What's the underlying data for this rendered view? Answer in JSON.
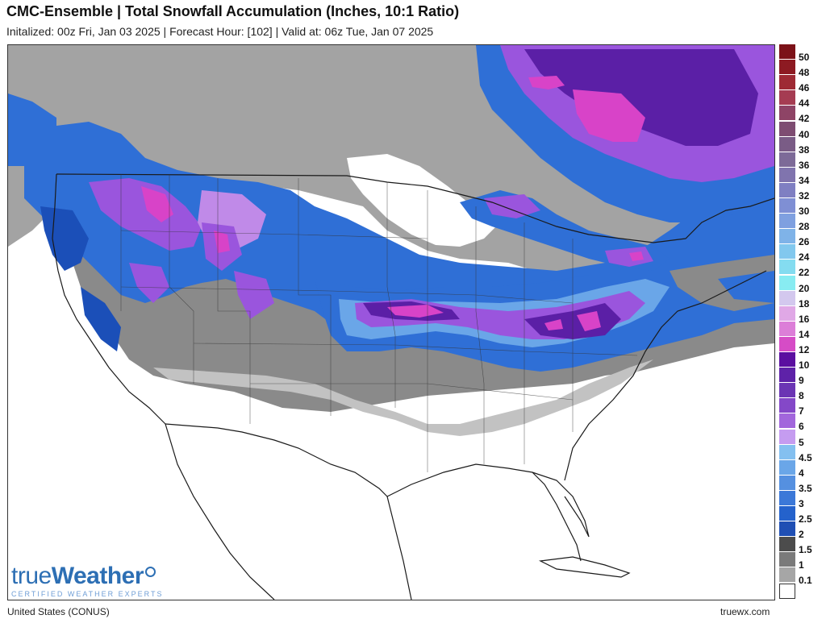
{
  "header": {
    "title": "CMC-Ensemble | Total Snowfall Accumulation (Inches, 10:1 Ratio)",
    "subtitle": "Initalized: 00z Fri, Jan 03 2025  |  Forecast Hour: [102]  |  Valid at: 06z Tue, Jan 07 2025"
  },
  "map": {
    "region": "United States (CONUS)",
    "colors": {
      "land": "#ffffff",
      "border": "#222222",
      "trace": "#c2c2c2",
      "light_gray": "#a3a3a3",
      "dark_gray": "#7a7a7a",
      "blue_light": "#6aa6e8",
      "blue": "#2f6fd6",
      "blue_dark": "#1b4fb8",
      "purple_light": "#c08ae8",
      "purple": "#9a55dd",
      "purple_dark": "#5b1fa6",
      "magenta": "#d843c8"
    }
  },
  "legend": {
    "items": [
      {
        "label": "50",
        "color": "#7c1218"
      },
      {
        "label": "48",
        "color": "#8d1a22"
      },
      {
        "label": "46",
        "color": "#9e2a34"
      },
      {
        "label": "44",
        "color": "#a53c52"
      },
      {
        "label": "42",
        "color": "#8e4466"
      },
      {
        "label": "40",
        "color": "#7e4c72"
      },
      {
        "label": "38",
        "color": "#7a5c86"
      },
      {
        "label": "36",
        "color": "#7d6a98"
      },
      {
        "label": "34",
        "color": "#8074ae"
      },
      {
        "label": "32",
        "color": "#7f7fc2"
      },
      {
        "label": "30",
        "color": "#7f8fd4"
      },
      {
        "label": "28",
        "color": "#7fa0e0"
      },
      {
        "label": "26",
        "color": "#7fb3e8"
      },
      {
        "label": "24",
        "color": "#82c8ee"
      },
      {
        "label": "22",
        "color": "#84dcf0"
      },
      {
        "label": "20",
        "color": "#88ecf2"
      },
      {
        "label": "18",
        "color": "#d3c8ee"
      },
      {
        "label": "16",
        "color": "#e0a8e6"
      },
      {
        "label": "14",
        "color": "#dc7ed8"
      },
      {
        "label": "12",
        "color": "#d64cc6"
      },
      {
        "label": "10",
        "color": "#5b0fa0"
      },
      {
        "label": "9",
        "color": "#5e22a8"
      },
      {
        "label": "8",
        "color": "#6b35b4"
      },
      {
        "label": "7",
        "color": "#8448c8"
      },
      {
        "label": "6",
        "color": "#a266dc"
      },
      {
        "label": "5",
        "color": "#c59cf0"
      },
      {
        "label": "4.5",
        "color": "#84c0f0"
      },
      {
        "label": "4",
        "color": "#6aa6e8"
      },
      {
        "label": "3.5",
        "color": "#5590e0"
      },
      {
        "label": "3",
        "color": "#3b78d8"
      },
      {
        "label": "2.5",
        "color": "#2462cc"
      },
      {
        "label": "2",
        "color": "#1f4fb4"
      },
      {
        "label": "1.5",
        "color": "#4c4c4c"
      },
      {
        "label": "1",
        "color": "#7a7a7a"
      },
      {
        "label": "0.1",
        "color": "#a6a6a6"
      },
      {
        "label": "",
        "color": "#ffffff"
      }
    ]
  },
  "branding": {
    "logo_true": "true",
    "logo_weather": "Weather",
    "tagline": "CERTIFIED WEATHER EXPERTS"
  },
  "footer": {
    "left": "United States (CONUS)",
    "right": "truewx.com"
  }
}
